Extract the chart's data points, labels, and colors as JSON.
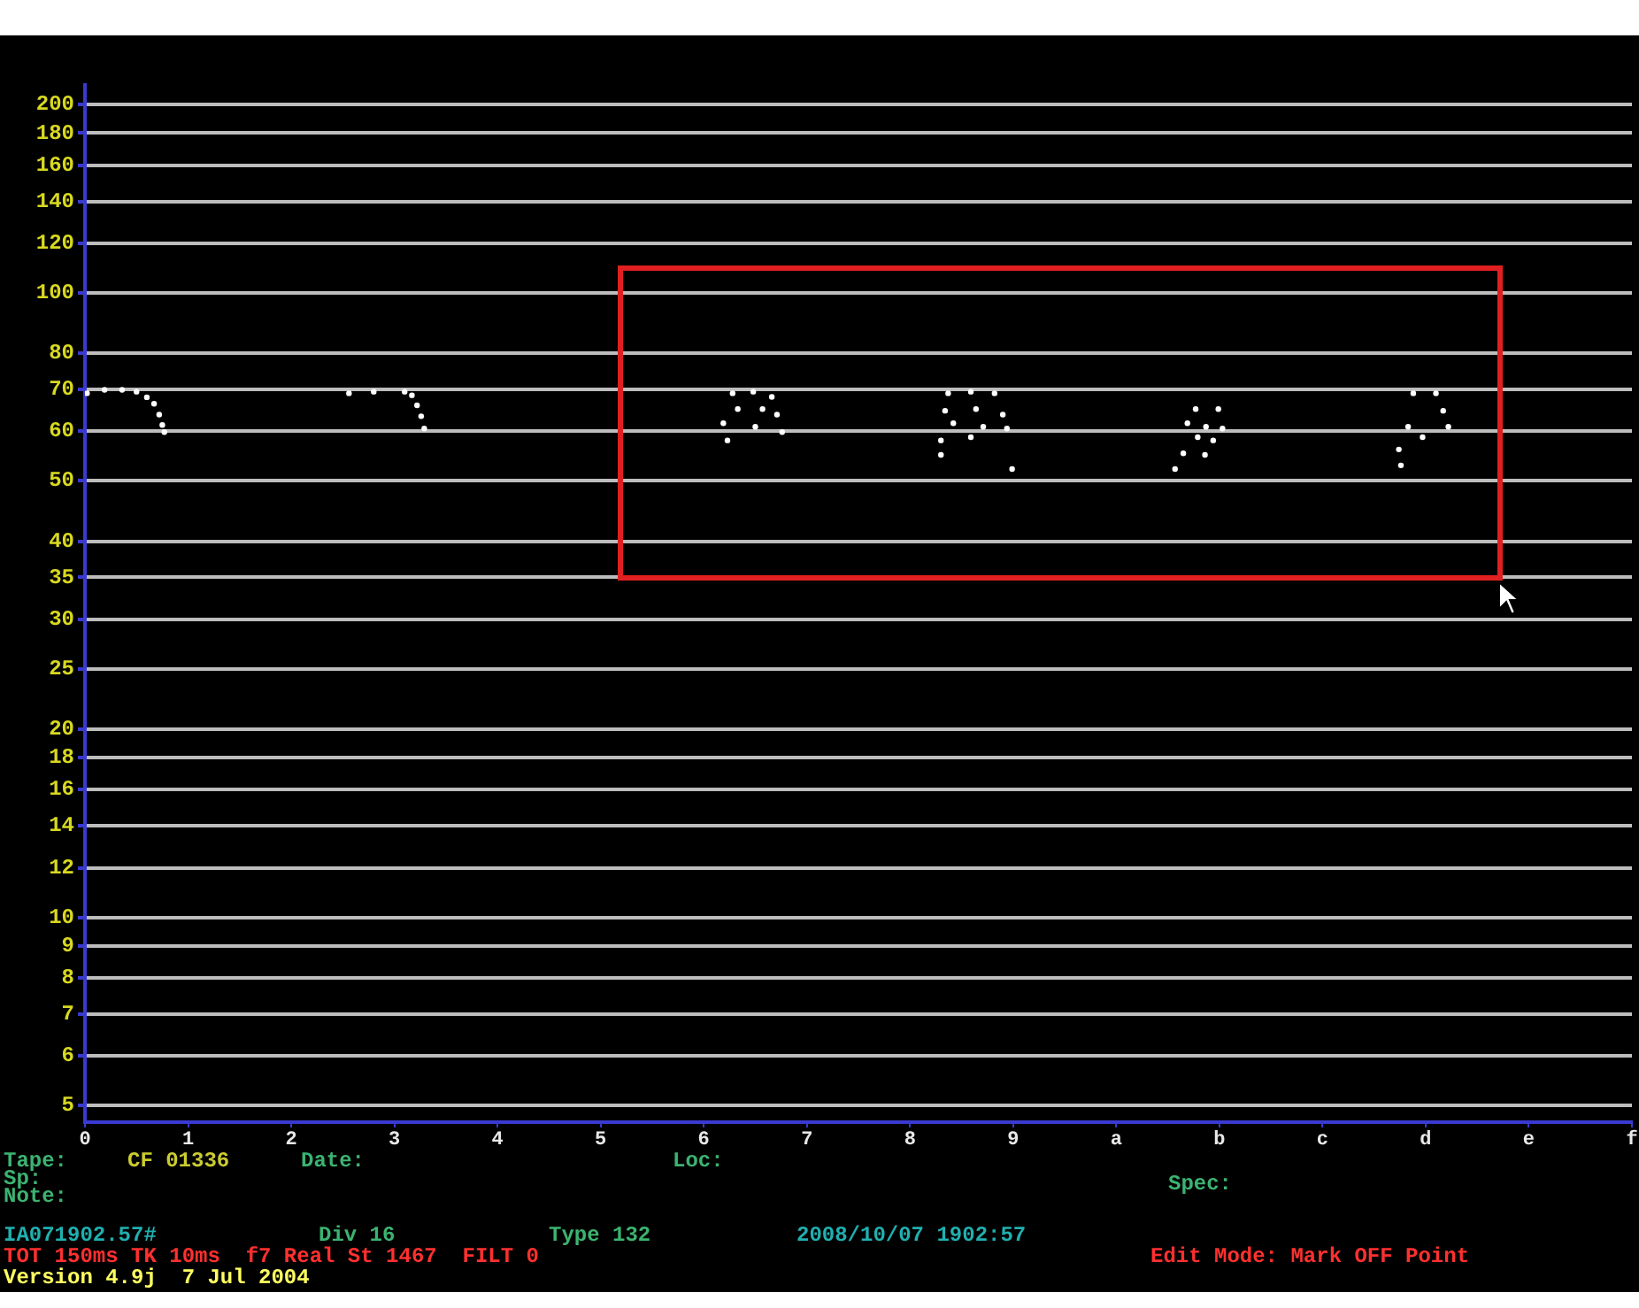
{
  "chart_data": {
    "type": "scatter",
    "xlim": [
      0,
      15
    ],
    "ylim": [
      4.7,
      215
    ],
    "log": "y",
    "grid": "y",
    "marker": "circle",
    "xticks": [
      0,
      1,
      2,
      3,
      4,
      5,
      6,
      7,
      8,
      9,
      {
        "value": 10,
        "label": "a"
      },
      {
        "value": 11,
        "label": "b"
      },
      {
        "value": 12,
        "label": "c"
      },
      {
        "value": 13,
        "label": "d"
      },
      {
        "value": 14,
        "label": "e"
      },
      {
        "value": 15,
        "label": "f"
      }
    ],
    "yticks": [
      5,
      6,
      7,
      8,
      9,
      10,
      12,
      14,
      16,
      18,
      20,
      25,
      30,
      35,
      40,
      50,
      60,
      70,
      80,
      100,
      120,
      140,
      160,
      180,
      200
    ],
    "series": [
      {
        "color": "#ffffff",
        "x": [
          0.02,
          0.19,
          0.36,
          0.5,
          0.6,
          0.67,
          0.72,
          0.75,
          0.77,
          2.56,
          2.8,
          3.1,
          3.17,
          3.22,
          3.26,
          3.29,
          6.28,
          6.48,
          6.66,
          6.33,
          6.57,
          6.71,
          6.19,
          6.5,
          6.76,
          6.23,
          8.37,
          8.59,
          8.82,
          8.34,
          8.64,
          8.9,
          8.42,
          8.71,
          8.94,
          8.3,
          8.59,
          8.3,
          8.99,
          10.77,
          10.99,
          10.69,
          10.87,
          11.03,
          10.79,
          10.94,
          10.65,
          10.86,
          10.57,
          12.88,
          13.1,
          13.17,
          13.22,
          12.83,
          12.97,
          12.74,
          12.76
        ],
        "values": [
          69,
          69.9,
          69.9,
          69.4,
          68,
          66.4,
          63.8,
          61.4,
          59.8,
          69,
          69.4,
          69.4,
          68.5,
          66,
          63.4,
          60.6,
          69,
          69.4,
          68.1,
          65.1,
          65.1,
          63.8,
          61.8,
          61,
          59.8,
          58,
          69,
          69.4,
          69,
          64.7,
          65.1,
          63.8,
          61.8,
          61,
          60.6,
          58,
          58.7,
          55,
          52.2,
          65.1,
          65.1,
          61.8,
          61,
          60.6,
          58.7,
          58,
          55.3,
          55,
          52.2,
          69,
          69,
          64.7,
          61,
          61,
          58.7,
          56.1,
          52.9
        ]
      }
    ],
    "annotations": [
      "Tape:",
      "CF 01336",
      "Date:",
      "Loc:",
      "Sp:",
      "Spec:",
      "Note:",
      "IA071902.57#",
      "Div 16",
      "Type 132",
      "2008/10/07 1902:57",
      "TOT 150ms TK 10ms  f7 Real St 1467  FILT 0",
      "Edit Mode: Mark OFF Point",
      "Version 4.9j  7 Jul 2004"
    ]
  }
}
